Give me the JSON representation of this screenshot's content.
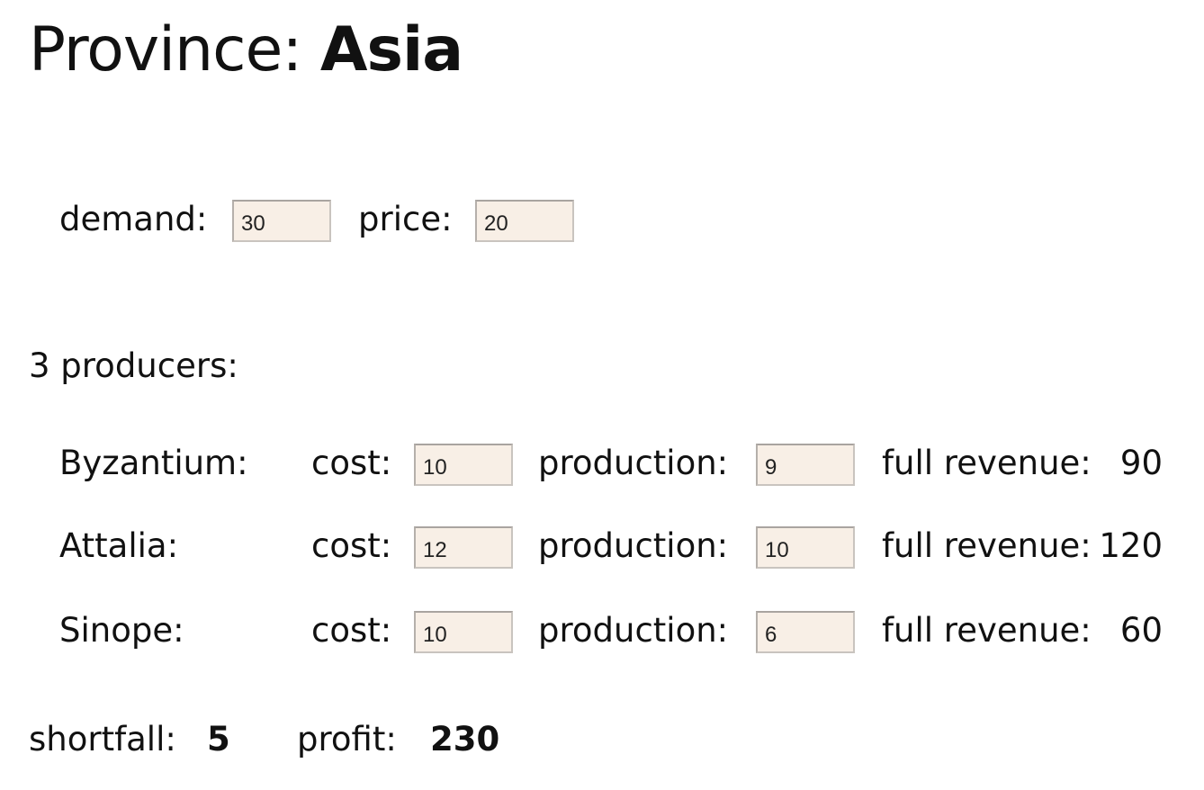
{
  "province": {
    "prefix": "Province: ",
    "name": "Asia"
  },
  "market": {
    "demand_label": "demand:",
    "demand_value": "30",
    "price_label": "price:",
    "price_value": "20"
  },
  "producers_heading": "3 producers:",
  "producers": [
    {
      "name": "Byzantium:",
      "cost_label": "cost:",
      "cost": "10",
      "production_label": "production:",
      "production": "9",
      "revenue_label": "full revenue:",
      "revenue": "90"
    },
    {
      "name": "Attalia:",
      "cost_label": "cost:",
      "cost": "12",
      "production_label": "production:",
      "production": "10",
      "revenue_label": "full revenue:",
      "revenue": "120"
    },
    {
      "name": "Sinope:",
      "cost_label": "cost:",
      "cost": "10",
      "production_label": "production:",
      "production": "6",
      "revenue_label": "full revenue:",
      "revenue": "60"
    }
  ],
  "summary": {
    "shortfall_label": "shortfall:",
    "shortfall_value": "5",
    "profit_label": "profit:",
    "profit_value": "230"
  }
}
